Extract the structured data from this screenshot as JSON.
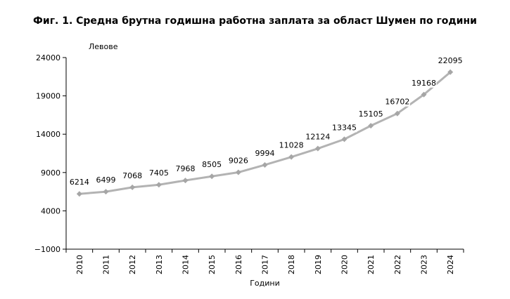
{
  "chart_data": {
    "type": "line",
    "title": "Фиг. 1. Средна брутна годишна работна заплата за област Шумен по години",
    "xlabel": "Години",
    "ylabel": "Левове",
    "categories": [
      "2010",
      "2011",
      "2012",
      "2013",
      "2014",
      "2015",
      "2016",
      "2017",
      "2018",
      "2019",
      "2020",
      "2021",
      "2022",
      "2023",
      "2024"
    ],
    "series": [
      {
        "values": [
          6214,
          6499,
          7068,
          7405,
          7968,
          8505,
          9026,
          9994,
          11028,
          12124,
          13345,
          15105,
          16702,
          19168,
          22095
        ]
      }
    ],
    "ylim": [
      -1000,
      24000
    ],
    "yticks": [
      -1000,
      4000,
      9000,
      14000,
      19000,
      24000
    ],
    "data_labels": true,
    "grid": false,
    "legend": "none",
    "line_color": "#b3b3b3",
    "marker": "diamond",
    "marker_color": "#a6a6a6"
  }
}
